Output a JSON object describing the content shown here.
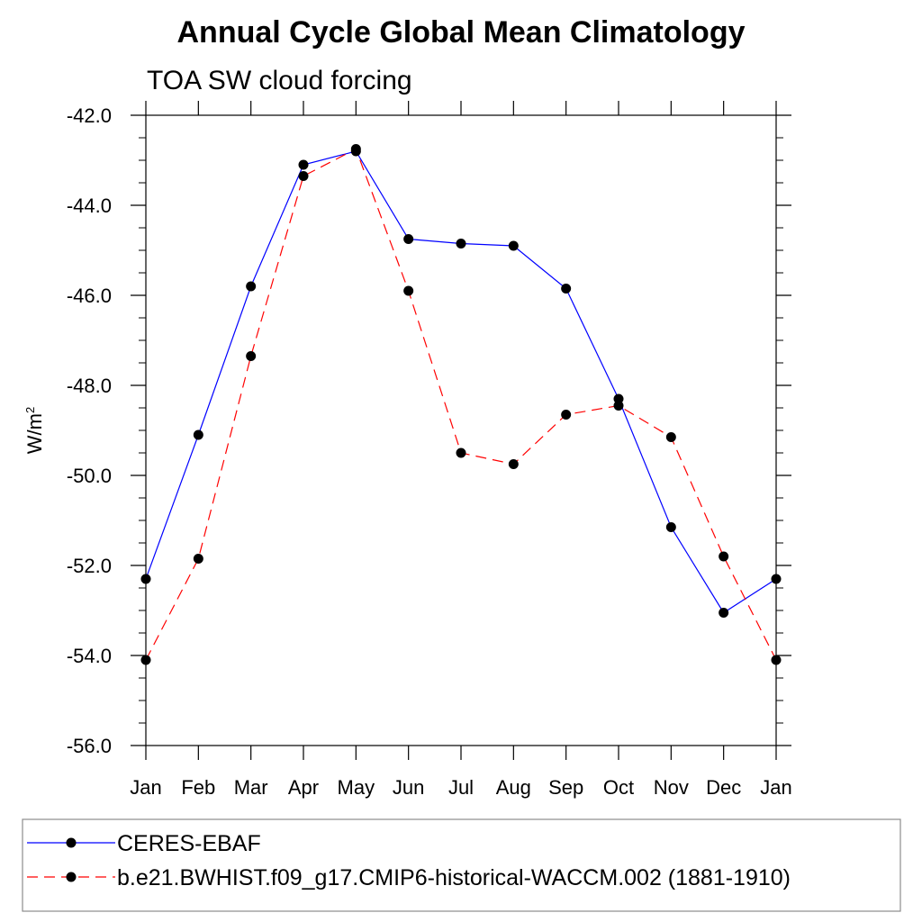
{
  "chart_data": {
    "type": "line",
    "title": "Annual Cycle Global Mean Climatology",
    "subtitle": "TOA SW cloud forcing",
    "ylabel": "W/m",
    "ylabel_sup": "2",
    "xlabel": "",
    "categories": [
      "Jan",
      "Feb",
      "Mar",
      "Apr",
      "May",
      "Jun",
      "Jul",
      "Aug",
      "Sep",
      "Oct",
      "Nov",
      "Dec",
      "Jan"
    ],
    "ylim": [
      -56.0,
      -42.0
    ],
    "yticks": [
      -42.0,
      -44.0,
      -46.0,
      -48.0,
      -50.0,
      -52.0,
      -54.0,
      -56.0
    ],
    "ytick_labels": [
      "-42.0",
      "-44.0",
      "-46.0",
      "-48.0",
      "-50.0",
      "-52.0",
      "-54.0",
      "-56.0"
    ],
    "grid": false,
    "legend_position": "bottom",
    "series": [
      {
        "name": "CERES-EBAF",
        "color": "#0000ff",
        "line_style": "solid",
        "marker": "filled-circle",
        "values": [
          -52.3,
          -49.1,
          -45.8,
          -43.1,
          -42.8,
          -44.75,
          -44.85,
          -44.9,
          -45.85,
          -48.3,
          -51.15,
          -53.05,
          -52.3
        ]
      },
      {
        "name": "b.e21.BWHIST.f09_g17.CMIP6-historical-WACCM.002 (1881-1910)",
        "color": "#ff0000",
        "line_style": "dashed",
        "marker": "filled-circle",
        "values": [
          -54.1,
          -51.85,
          -47.35,
          -43.35,
          -42.75,
          -45.9,
          -49.5,
          -49.75,
          -48.65,
          -48.45,
          -49.15,
          -51.8,
          -54.1
        ]
      }
    ]
  }
}
